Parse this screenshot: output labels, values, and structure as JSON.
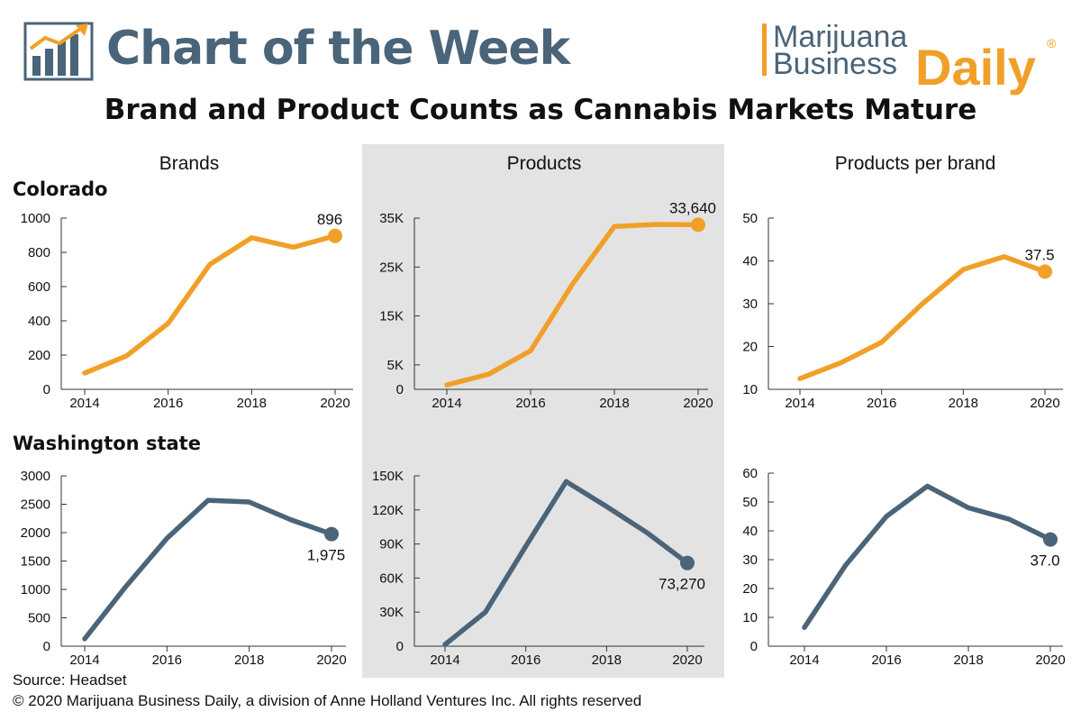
{
  "header": {
    "title": "Chart of the Week",
    "logo_line1": "Marijuana",
    "logo_line2": "Business",
    "logo_daily": "Daily",
    "logo_reg": "®"
  },
  "main_title": "Brand and Product Counts as Cannabis Markets Mature",
  "columns": [
    "Brands",
    "Products",
    "Products per brand"
  ],
  "rows": [
    "Colorado",
    "Washington state"
  ],
  "footer": {
    "source": "Source: Headset",
    "copyright": "© 2020 Marijuana Business Daily, a division of Anne Holland Ventures Inc. All rights reserved"
  },
  "colors": {
    "colorado": "#f0a028",
    "washington": "#4a6479",
    "highlight_bg": "#e3e3e3",
    "axis": "#333333"
  },
  "chart_data": [
    {
      "type": "line",
      "panel": "colorado-brands",
      "series_color": "colorado",
      "x": [
        2014,
        2015,
        2016,
        2017,
        2018,
        2019,
        2020
      ],
      "values": [
        95,
        195,
        385,
        730,
        885,
        830,
        896
      ],
      "ylim": [
        0,
        1000
      ],
      "yticks": [
        0,
        200,
        400,
        600,
        800,
        1000
      ],
      "ytick_labels": [
        "0",
        "200",
        "400",
        "600",
        "800",
        "1000"
      ],
      "xticks": [
        2014,
        2016,
        2018,
        2020
      ],
      "end_label": "896",
      "end_label_pos": "above"
    },
    {
      "type": "line",
      "panel": "colorado-products",
      "series_color": "colorado",
      "x": [
        2014,
        2015,
        2016,
        2017,
        2018,
        2019,
        2020
      ],
      "values": [
        900,
        3100,
        7900,
        21500,
        33300,
        33700,
        33640
      ],
      "ylim": [
        0,
        35000
      ],
      "yticks": [
        0,
        5000,
        15000,
        25000,
        35000
      ],
      "ytick_labels": [
        "0",
        "5K",
        "15K",
        "25K",
        "35K"
      ],
      "xticks": [
        2014,
        2016,
        2018,
        2020
      ],
      "end_label": "33,640",
      "end_label_pos": "above"
    },
    {
      "type": "line",
      "panel": "colorado-ppb",
      "series_color": "colorado",
      "x": [
        2014,
        2015,
        2016,
        2017,
        2018,
        2019,
        2020
      ],
      "values": [
        12.5,
        16.2,
        21,
        30,
        38,
        41,
        37.5
      ],
      "ylim": [
        10,
        50
      ],
      "yticks": [
        10,
        20,
        30,
        40,
        50
      ],
      "ytick_labels": [
        "10",
        "20",
        "30",
        "40",
        "50"
      ],
      "xticks": [
        2014,
        2016,
        2018,
        2020
      ],
      "end_label": "37.5",
      "end_label_pos": "above"
    },
    {
      "type": "line",
      "panel": "washington-brands",
      "series_color": "washington",
      "x": [
        2014,
        2015,
        2016,
        2017,
        2018,
        2019,
        2020
      ],
      "values": [
        130,
        1050,
        1900,
        2570,
        2540,
        2230,
        1975
      ],
      "ylim": [
        0,
        3000
      ],
      "yticks": [
        0,
        500,
        1000,
        1500,
        2000,
        2500,
        3000
      ],
      "ytick_labels": [
        "0",
        "500",
        "1000",
        "1500",
        "2000",
        "2500",
        "3000"
      ],
      "xticks": [
        2014,
        2016,
        2018,
        2020
      ],
      "end_label": "1,975",
      "end_label_pos": "below"
    },
    {
      "type": "line",
      "panel": "washington-products",
      "series_color": "washington",
      "x": [
        2014,
        2015,
        2016,
        2017,
        2018,
        2019,
        2020
      ],
      "values": [
        1500,
        30000,
        88000,
        145000,
        123000,
        100000,
        73270
      ],
      "ylim": [
        0,
        150000
      ],
      "yticks": [
        0,
        30000,
        60000,
        90000,
        120000,
        150000
      ],
      "ytick_labels": [
        "0",
        "30K",
        "60K",
        "90K",
        "120K",
        "150K"
      ],
      "xticks": [
        2014,
        2016,
        2018,
        2020
      ],
      "end_label": "73,270",
      "end_label_pos": "below"
    },
    {
      "type": "line",
      "panel": "washington-ppb",
      "series_color": "washington",
      "x": [
        2014,
        2015,
        2016,
        2017,
        2018,
        2019,
        2020
      ],
      "values": [
        6.5,
        28,
        45,
        55.5,
        48,
        44,
        37
      ],
      "ylim": [
        0,
        60
      ],
      "yticks": [
        0,
        10,
        20,
        30,
        40,
        50,
        60
      ],
      "ytick_labels": [
        "0",
        "10",
        "20",
        "30",
        "40",
        "50",
        "60"
      ],
      "xticks": [
        2014,
        2016,
        2018,
        2020
      ],
      "end_label": "37.0",
      "end_label_pos": "below"
    }
  ]
}
